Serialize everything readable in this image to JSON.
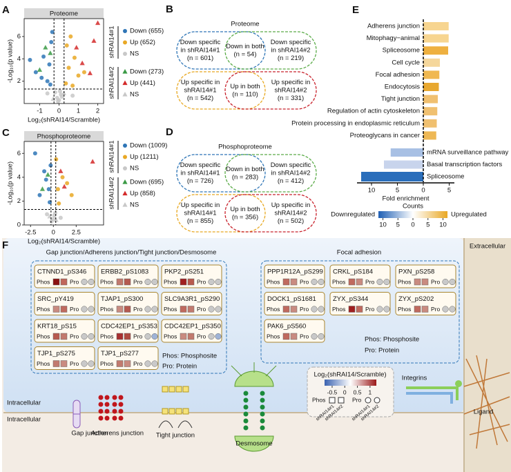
{
  "chart_data": [
    {
      "type": "scatter",
      "letter": "A",
      "banner": "Proteome",
      "x_label": "Log₂(shRAI14/Scramble)",
      "y_label": "-Log₁₀(p value)",
      "xlim": [
        -1.8,
        2.3
      ],
      "ylim": [
        0,
        7.6
      ],
      "xticks": [
        -1,
        0,
        1,
        2
      ],
      "yticks": [
        2,
        4,
        6
      ],
      "x_thresholds": [
        -0.26,
        0.26
      ],
      "y_threshold": 1.3,
      "legend_groups": [
        {
          "name": "shRAI14#1",
          "series": [
            {
              "name": "Down (655)",
              "color": "#2e75b6",
              "marker": "circle",
              "x": [
                -0.5,
                -0.8,
                -1.2,
                -0.4,
                -0.6,
                -1.5,
                -0.35,
                -0.9,
                -0.45
              ],
              "values": [
                3.5,
                4.2,
                2.8,
                5.5,
                2.0,
                3.9,
                6.4,
                2.3,
                1.7
              ]
            },
            {
              "name": "Up (652)",
              "color": "#e9a825",
              "marker": "circle",
              "x": [
                0.5,
                0.8,
                1.0,
                0.4,
                0.6,
                1.3,
                0.35,
                0.7
              ],
              "values": [
                3.2,
                4.1,
                2.5,
                5.2,
                6.0,
                2.8,
                1.8,
                1.6
              ]
            },
            {
              "name": "NS",
              "color": "#c8c8c8",
              "marker": "circle",
              "x": [
                -0.1,
                0.1,
                0.0,
                -0.2,
                0.15,
                0.05,
                -0.05,
                -0.6,
                0.7
              ],
              "values": [
                0.5,
                0.8,
                0.3,
                1.0,
                0.6,
                1.1,
                0.2,
                0.9,
                0.7
              ]
            }
          ]
        },
        {
          "name": "shRAI14#2",
          "series": [
            {
              "name": "Down (273)",
              "color": "#3a9a45",
              "marker": "triangle",
              "x": [
                -0.7,
                -1.0,
                -0.45
              ],
              "values": [
                5.0,
                3.0,
                4.5
              ]
            },
            {
              "name": "Up (441)",
              "color": "#d42a2a",
              "marker": "triangle",
              "x": [
                1.2,
                1.6,
                0.9,
                1.8,
                2.0
              ],
              "values": [
                3.6,
                2.7,
                5.0,
                5.6,
                7.2
              ]
            },
            {
              "name": "NS",
              "color": "#c8c8c8",
              "marker": "triangle",
              "x": [
                -0.3,
                0.25
              ],
              "values": [
                0.4,
                0.9
              ]
            }
          ]
        }
      ]
    },
    {
      "type": "scatter",
      "letter": "C",
      "banner": "Phosphoproteome",
      "x_label": "Log₂(shRAI14/Scramble)",
      "y_label": "-Log₁₀(p value)",
      "xlim": [
        -3.2,
        5.5
      ],
      "ylim": [
        0,
        7
      ],
      "xticks": [
        -2.5,
        0,
        2.5
      ],
      "yticks": [
        0,
        2,
        4,
        6
      ],
      "x_thresholds": [
        -0.26,
        0.26
      ],
      "y_threshold": 1.3,
      "legend_groups": [
        {
          "name": "shRAI14#1",
          "series": [
            {
              "name": "Down (1009)",
              "color": "#2e75b6",
              "marker": "circle",
              "x": [
                -0.5,
                -1.0,
                -2.0,
                -0.3,
                -1.5,
                -0.8,
                -0.4
              ],
              "values": [
                3.0,
                4.5,
                6.0,
                5.0,
                2.5,
                3.8,
                1.9
              ]
            },
            {
              "name": "Up (1211)",
              "color": "#e9a825",
              "marker": "circle",
              "x": [
                0.5,
                1.0,
                2.0,
                0.3,
                1.5,
                0.6
              ],
              "values": [
                3.0,
                4.0,
                2.5,
                5.5,
                3.5,
                1.8
              ]
            },
            {
              "name": "NS",
              "color": "#c8c8c8",
              "marker": "circle",
              "x": [
                0.0,
                0.2,
                -0.2,
                0.1,
                -0.7,
                0.8
              ],
              "values": [
                0.5,
                1.0,
                0.3,
                0.8,
                0.9,
                0.6
              ]
            }
          ]
        },
        {
          "name": "shRAI14#2",
          "series": [
            {
              "name": "Down (695)",
              "color": "#3a9a45",
              "marker": "triangle",
              "x": [
                -0.6,
                -1.2
              ],
              "values": [
                4.2,
                3.0
              ]
            },
            {
              "name": "Up (858)",
              "color": "#d42a2a",
              "marker": "triangle",
              "x": [
                1.2,
                4.3,
                0.8
              ],
              "values": [
                3.2,
                5.3,
                4.5
              ]
            },
            {
              "name": "NS",
              "color": "#c8c8c8",
              "marker": "triangle",
              "x": [
                0.3,
                -0.4
              ],
              "values": [
                0.4,
                0.7
              ]
            }
          ]
        }
      ]
    },
    {
      "type": "bar",
      "orientation": "horizontal",
      "letter": "E",
      "x_label": "Fold enrichment",
      "categories": [
        "Adherens junction",
        "Mitophagy−animal",
        "Spliceosome",
        "Cell cycle",
        "Focal adhesion",
        "Endocytosis",
        "Tight junction",
        "Regulation of actin cytoskeleton",
        "Protein processing in endoplasmic reticulum",
        "Proteoglycans in cancer",
        "mRNA surveillance pathway",
        "Basal transcription factors",
        "Spliceosome"
      ],
      "values": [
        4.9,
        4.9,
        4.8,
        3.2,
        3.1,
        3.0,
        2.8,
        2.7,
        2.6,
        2.5,
        -6.3,
        -7.6,
        -12.0
      ],
      "colors": [
        "#f7d590",
        "#f7d590",
        "#eeb040",
        "#f5d79c",
        "#f0b850",
        "#e8a830",
        "#f0c070",
        "#f0c070",
        "#f0c070",
        "#eeb855",
        "#a8c0e4",
        "#c8d4ec",
        "#2a6ebb"
      ],
      "xlim": [
        -12.8,
        6
      ],
      "xticks": [
        {
          "value": -10,
          "label": "10"
        },
        {
          "value": -5,
          "label": "5"
        },
        0,
        5
      ],
      "colorbar": {
        "title": "Counts",
        "low_label": "Downregulated",
        "high_label": "Upregulated",
        "lim": [
          -11.5,
          11.5
        ],
        "ticks": [
          {
            "value": -10,
            "label": "10"
          },
          {
            "value": -5,
            "label": "5"
          },
          0,
          5,
          10
        ],
        "colors": [
          "#1f5fb4",
          "#ffffff",
          "#e9a825"
        ]
      }
    }
  ],
  "venn": [
    {
      "letter": "B",
      "title": "Proteome",
      "colors": [
        "#2e75b6",
        "#5aab47",
        "#e8a820",
        "#c8202a"
      ],
      "cells": [
        [
          "Down specific",
          "in shRAI14#1",
          "(n = 601)"
        ],
        [
          "Down in both",
          "(n = 54)"
        ],
        [
          "Down specific",
          "in shRAI14#2",
          "(n = 219)"
        ],
        [
          "Up specific in",
          "shRAI14#1",
          "(n = 542)"
        ],
        [
          "Up in both",
          "(n = 110)"
        ],
        [
          "Up specific in",
          "shRAI14#2",
          "(n = 331)"
        ]
      ]
    },
    {
      "letter": "D",
      "title": "Phosphoproteome",
      "colors": [
        "#2e75b6",
        "#5aab47",
        "#e8a820",
        "#c8202a"
      ],
      "cells": [
        [
          "Down specific",
          "in shRAI14#1",
          "(n = 726)"
        ],
        [
          "Down in both",
          "(n = 283)"
        ],
        [
          "Down specific",
          "in shRAI14#2",
          "(n = 412)"
        ],
        [
          "Up specific in",
          "shRAI14#1",
          "(n = 855)"
        ],
        [
          "Up in both",
          "(n = 356)"
        ],
        [
          "Up specific in",
          "shRAI14#2",
          "(n = 502)"
        ]
      ]
    }
  ],
  "diagram": {
    "letter": "F",
    "extracellular": "Extracellular",
    "intracellular": [
      "Intracellular",
      "Intracellular"
    ],
    "phos_label": "Phos",
    "pro_label": "Pro",
    "sections": [
      {
        "title": "Gap junction/Adherens junction/Tight junction/Desmosome",
        "notes": [
          "Phos: Phosphosite",
          "Pro: Protein"
        ],
        "items": [
          {
            "label": "CTNND1_pS346",
            "phos": [
              "#8b1111",
              "#c0665a"
            ],
            "pro": [
              "#c9c9c9",
              "#c9c9c9"
            ]
          },
          {
            "label": "ERBB2_pS1083",
            "phos": [
              "#c27a6e",
              "#b55a50"
            ],
            "pro": [
              "#c9c9c9",
              "#c9c9c9"
            ]
          },
          {
            "label": "PKP2_pS251",
            "phos": [
              "#a02020",
              "#b85a4e"
            ],
            "pro": [
              "#c9c9c9",
              "#c9c9c9"
            ]
          },
          {
            "label": "SRC_pY419",
            "phos": [
              "#c98b80",
              "#c06a5e"
            ],
            "pro": [
              "#c9c9c9",
              "#c9c9c9"
            ]
          },
          {
            "label": "TJAP1_pS300",
            "phos": [
              "#c98b80",
              "#b55a50"
            ],
            "pro": [
              "#c9c9c9",
              "#c9c9c9"
            ]
          },
          {
            "label": "SLC9A3R1_pS290",
            "phos": [
              "#c06a5e",
              "#c27a6e"
            ],
            "pro": [
              "#c9c9c9",
              "#c9c9c9"
            ]
          },
          {
            "label": "KRT18_pS15",
            "phos": [
              "#b85a4e",
              "#c27a6e"
            ],
            "pro": [
              "#c9c9c9",
              "#c9c9c9"
            ]
          },
          {
            "label": "CDC42EP1_pS353",
            "phos": [
              "#a83030",
              "#b04a40"
            ],
            "pro": [
              "#c9c9c9",
              "#9fb3d6"
            ]
          },
          {
            "label": "CDC42EP1_pS350",
            "phos": [
              "#c98b80",
              "#c27a6e"
            ],
            "pro": [
              "#c9c9c9",
              "#9fb3d6"
            ]
          },
          {
            "label": "TJP1_pS275",
            "phos": [
              "#c27a6e",
              "#c98b80"
            ],
            "pro": [
              "#c9c9c9",
              "#c9c9c9"
            ]
          },
          {
            "label": "TJP1_pS277",
            "phos": [
              "#c27a6e",
              "#c98b80"
            ],
            "pro": [
              "#c9c9c9",
              "#c9c9c9"
            ]
          }
        ]
      },
      {
        "title": "Focal adhesion",
        "notes": [
          "Phos: Phosphosite",
          "Pro: Protein"
        ],
        "items": [
          {
            "label": "PPP1R12A_pS299",
            "phos": [
              "#c06a5e",
              "#c98b80"
            ],
            "pro": [
              "#c9c9c9",
              "#c9c9c9"
            ]
          },
          {
            "label": "CRKL_pS184",
            "phos": [
              "#c06a5e",
              "#c98b80"
            ],
            "pro": [
              "#c9c9c9",
              "#c9c9c9"
            ]
          },
          {
            "label": "PXN_pS258",
            "phos": [
              "#c98b80",
              "#c98b80"
            ],
            "pro": [
              "#c9c9c9",
              "#c9c9c9"
            ]
          },
          {
            "label": "DOCK1_pS1681",
            "phos": [
              "#c06a5e",
              "#c98b80"
            ],
            "pro": [
              "#c9c9c9",
              "#c9c9c9"
            ]
          },
          {
            "label": "ZYX_pS344",
            "phos": [
              "#a02020",
              "#c06a5e"
            ],
            "pro": [
              "#c9c9c9",
              "#c9c9c9"
            ]
          },
          {
            "label": "ZYX_pS202",
            "phos": [
              "#c06a5e",
              "#c98b80"
            ],
            "pro": [
              "#c9c9c9",
              "#c9c9c9"
            ]
          },
          {
            "label": "PAK6_pS560",
            "phos": [
              "#c06a5e",
              "#c98b80"
            ],
            "pro": [
              "#c9c9c9",
              "#c9c9c9"
            ]
          }
        ]
      }
    ],
    "structures": [
      "Gap junction",
      "Adherens junction",
      "Tight junction",
      "Desmosome",
      "Integrins",
      "Ligand"
    ],
    "legend": {
      "title": "Log₂(shRAI14/Scramble)",
      "lim": [
        -0.8,
        1.25
      ],
      "ticks": [
        -0.5,
        0,
        0.5,
        1
      ],
      "colors": [
        "#3a62b0",
        "#ffffff",
        "#9b1a1a"
      ],
      "samples": [
        "shRAI14#1",
        "shRAI14#2"
      ]
    }
  }
}
